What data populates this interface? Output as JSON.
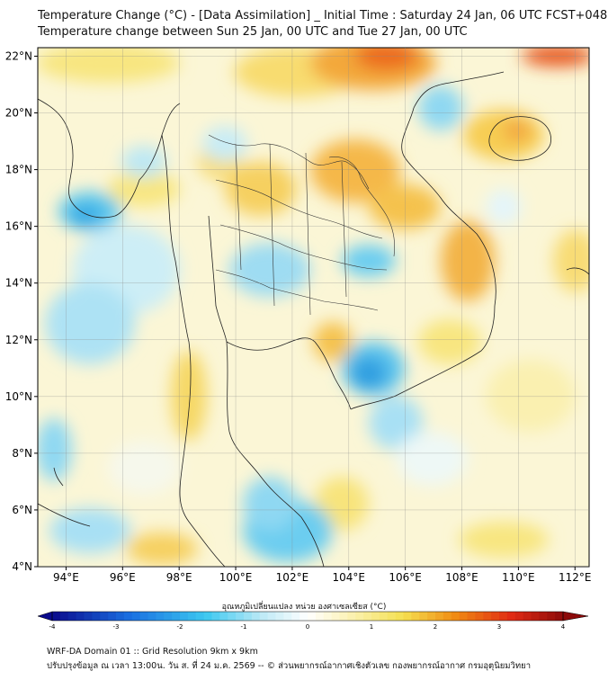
{
  "header": {
    "title_line1": "Temperature Change (°C) - [Data Assimilation] _ Initial Time : Saturday 24 Jan, 06 UTC FCST+048",
    "title_line2": "Temperature change between Sun 25 Jan, 00 UTC and Tue 27 Jan, 00 UTC"
  },
  "map": {
    "lat_labels": [
      "22°N",
      "20°N",
      "18°N",
      "16°N",
      "14°N",
      "12°N",
      "10°N",
      "8°N",
      "6°N",
      "4°N"
    ],
    "lon_labels": [
      "94°E",
      "96°E",
      "98°E",
      "100°E",
      "102°E",
      "104°E",
      "106°E",
      "108°E",
      "110°E",
      "112°E"
    ],
    "lat_values": [
      22,
      20,
      18,
      16,
      14,
      12,
      10,
      8,
      6,
      4
    ],
    "lon_values": [
      94,
      96,
      98,
      100,
      102,
      104,
      106,
      108,
      110,
      112
    ],
    "lat_range": [
      4,
      22.3
    ],
    "lon_range": [
      93,
      112.5
    ]
  },
  "colorbar": {
    "label": "อุณหภูมิเปลี่ยนแปลง หน่วย องศาเซลเซียส (°C)",
    "ticks": [
      "-4",
      "-3",
      "-2",
      "-1",
      "0",
      "1",
      "2",
      "3",
      "4"
    ],
    "tick_values": [
      -4,
      -3,
      -2,
      -1,
      0,
      1,
      2,
      3,
      4
    ],
    "range": [
      -4,
      4
    ],
    "colors": {
      "strong_cold": "#0a0a8c",
      "cold": "#1a6ee0",
      "cool": "#3cc8f0",
      "neutral": "#ffffff",
      "warm": "#f5e050",
      "hot": "#f08c14",
      "strong_hot": "#8c0a0a"
    }
  },
  "footer": {
    "line1": "WRF-DA Domain 01 :: Grid Resolution 9km x 9km",
    "line2": "ปรับปรุงข้อมูล ณ เวลา 13:00น. วัน ส. ที่ 24 ม.ค. 2569 -- © ส่วนพยากรณ์อากาศเชิงตัวเลข กองพยากรณ์อากาศ กรมอุตุนิยมวิทยา"
  }
}
